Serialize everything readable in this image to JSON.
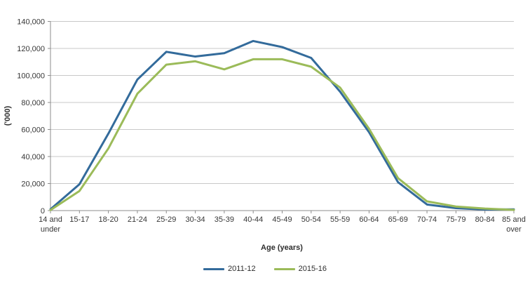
{
  "chart_data": {
    "type": "line",
    "title": "",
    "xlabel": "Age (years)",
    "ylabel": "('000)",
    "categories": [
      "14 and under",
      "15-17",
      "18-20",
      "21-24",
      "25-29",
      "30-34",
      "35-39",
      "40-44",
      "45-49",
      "50-54",
      "55-59",
      "60-64",
      "65-69",
      "70-74",
      "75-79",
      "80-84",
      "85 and over"
    ],
    "series": [
      {
        "name": "2011-12",
        "color": "#336B9B",
        "values": [
          1000,
          19500,
          57000,
          97000,
          117500,
          114000,
          116500,
          125500,
          121000,
          113000,
          88000,
          58000,
          21000,
          4500,
          1800,
          800,
          900
        ]
      },
      {
        "name": "2015-16",
        "color": "#9BBB59",
        "values": [
          400,
          14500,
          46000,
          86500,
          108000,
          110500,
          104500,
          112000,
          112000,
          106500,
          91000,
          60500,
          24000,
          6800,
          3000,
          1500,
          500
        ]
      }
    ],
    "ylim": [
      0,
      140000
    ],
    "y_tick_step": 20000,
    "y_tick_labels": [
      "0",
      "20,000",
      "40,000",
      "60,000",
      "80,000",
      "100,000",
      "120,000",
      "140,000"
    ],
    "grid": "horizontal",
    "legend_position": "bottom",
    "colors": {
      "gridline": "#C8C8C8",
      "axis": "#8C8C8C",
      "text": "#373737"
    }
  }
}
